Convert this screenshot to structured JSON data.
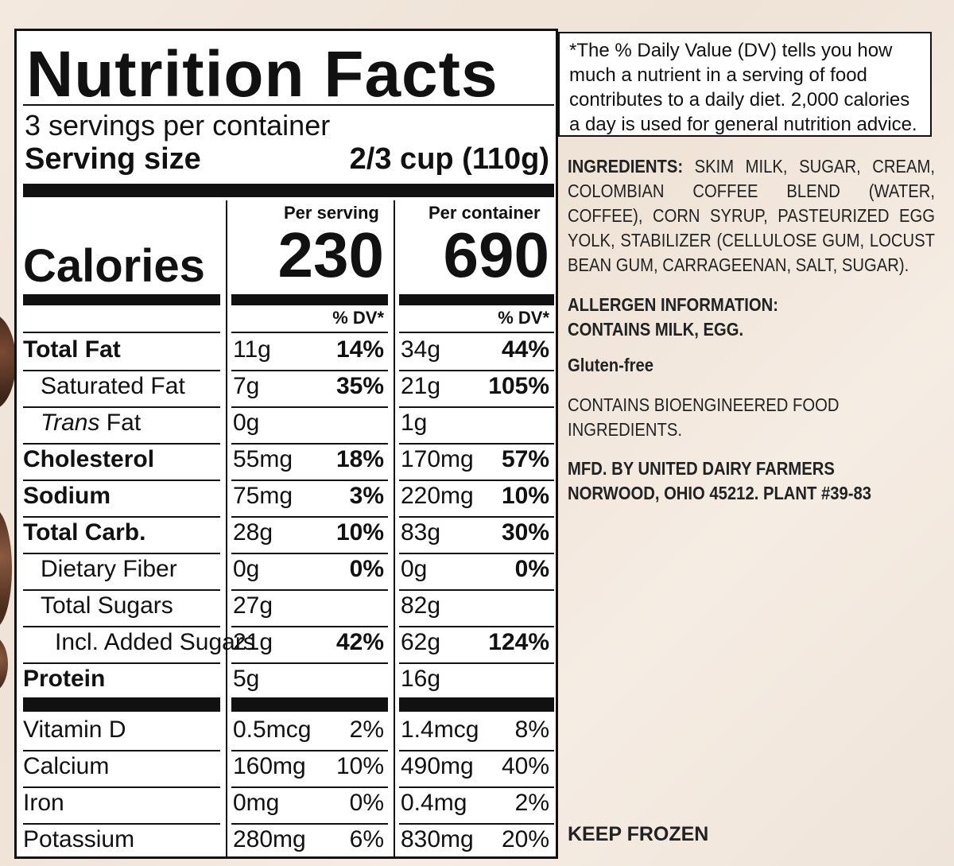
{
  "label": {
    "title": "Nutrition Facts",
    "servings_per_container": "3 servings per container",
    "serving_size_label": "Serving size",
    "serving_size_value": "2/3 cup (110g)",
    "col_per_serving": "Per serving",
    "col_per_container": "Per container",
    "calories_label": "Calories",
    "calories_per_serving": "230",
    "calories_per_container": "690",
    "dv_header": "% DV*",
    "nutrients": [
      {
        "name": "Total Fat",
        "serv_amt": "11g",
        "serv_dv": "14%",
        "cont_amt": "34g",
        "cont_dv": "44%"
      },
      {
        "name": "Saturated Fat",
        "serv_amt": "7g",
        "serv_dv": "35%",
        "cont_amt": "21g",
        "cont_dv": "105%"
      },
      {
        "name_italic": "Trans",
        "name": " Fat",
        "serv_amt": "0g",
        "serv_dv": "",
        "cont_amt": "1g",
        "cont_dv": ""
      },
      {
        "name": "Cholesterol",
        "serv_amt": "55mg",
        "serv_dv": "18%",
        "cont_amt": "170mg",
        "cont_dv": "57%"
      },
      {
        "name": "Sodium",
        "serv_amt": "75mg",
        "serv_dv": "3%",
        "cont_amt": "220mg",
        "cont_dv": "10%"
      },
      {
        "name": "Total Carb.",
        "name_suffix": ".",
        "serv_amt": "28g",
        "serv_dv": "10%",
        "cont_amt": "83g",
        "cont_dv": "30%"
      },
      {
        "name": "Dietary Fiber",
        "serv_amt": "0g",
        "serv_dv": "0%",
        "cont_amt": "0g",
        "cont_dv": "0%"
      },
      {
        "name": "Total Sugars",
        "serv_amt": "27g",
        "serv_dv": "",
        "cont_amt": "82g",
        "cont_dv": ""
      },
      {
        "name": "Incl. Added Sugars",
        "serv_amt": "21g",
        "serv_dv": "42%",
        "cont_amt": "62g",
        "cont_dv": "124%"
      },
      {
        "name": "Protein",
        "serv_amt": "5g",
        "serv_dv": "",
        "cont_amt": "16g",
        "cont_dv": ""
      }
    ],
    "vitamins": [
      {
        "name": "Vitamin D",
        "serv_amt": "0.5mcg",
        "serv_dv": "2%",
        "cont_amt": "1.4mcg",
        "cont_dv": "8%"
      },
      {
        "name": "Calcium",
        "serv_amt": "160mg",
        "serv_dv": "10%",
        "cont_amt": "490mg",
        "cont_dv": "40%"
      },
      {
        "name": "Iron",
        "serv_amt": "0mg",
        "serv_dv": "0%",
        "cont_amt": "0.4mg",
        "cont_dv": "2%"
      },
      {
        "name": "Potassium",
        "serv_amt": "280mg",
        "serv_dv": "6%",
        "cont_amt": "830mg",
        "cont_dv": "20%"
      }
    ]
  },
  "footnote": "*The % Daily Value (DV) tells you how much a nutrient in a serving of food contributes to a daily diet. 2,000 calories a day is used for general nutrition advice.",
  "ingredients": {
    "label": "INGREDIENTS:",
    "text": " SKIM MILK, SUGAR, CREAM, COLOMBIAN COFFEE BLEND (WATER, COFFEE), CORN SYRUP, PASTEURIZED EGG YOLK, STABILIZER (CELLULOSE GUM, LOCUST BEAN GUM, CARRAGEENAN, SALT, SUGAR)."
  },
  "allergen": {
    "line1": "ALLERGEN INFORMATION:",
    "line2": "CONTAINS MILK, EGG."
  },
  "gluten": "Gluten-free",
  "bioengineered": {
    "line1": "CONTAINS BIOENGINEERED FOOD",
    "line2": "INGREDIENTS."
  },
  "manufacturer": {
    "line1": "MFD. BY UNITED DAIRY FARMERS",
    "line2": "NORWOOD, OHIO 45212. PLANT #39-83"
  },
  "keep_frozen": "KEEP FROZEN"
}
